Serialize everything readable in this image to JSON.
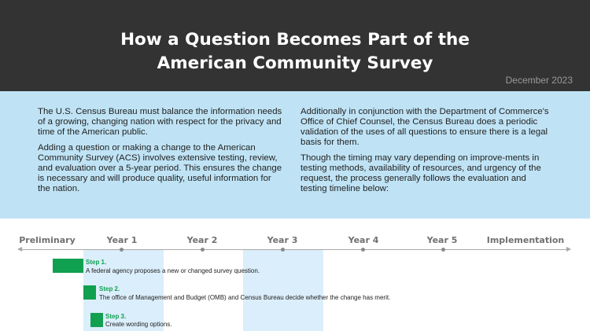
{
  "header": {
    "title_line1": "How a Question Becomes Part of the",
    "title_line2": "American Community Survey",
    "date": "December 2023"
  },
  "intro": {
    "left": [
      "The U.S. Census Bureau must balance the information needs of a growing, changing nation with respect for the privacy and time of the American public.",
      "Adding a question or making a change to the American Community Survey (ACS) involves extensive testing, review, and evaluation over a 5-year period. This ensures the change is necessary and will produce quality, useful information for the nation."
    ],
    "right": [
      "Additionally in conjunction with the Department of Commerce's Office of Chief Counsel, the Census Bureau does a periodic validation of the uses of all questions to ensure there is a legal basis for them.",
      "Though the timing may vary depending on improve-ments in testing methods, availability of resources, and urgency of the request, the process generally follows the evaluation and testing timeline below:"
    ]
  },
  "timeline": {
    "phases": [
      "Preliminary",
      "Year 1",
      "Year 2",
      "Year 3",
      "Year 4",
      "Year 5",
      "Implementation"
    ],
    "steps": [
      {
        "title": "Step 1.",
        "text": "A federal agency proposes a new or changed survey question."
      },
      {
        "title": "Step 2.",
        "text": "The office of Management and Budget (OMB) and Census Bureau decide whether the change has merit."
      },
      {
        "title": "Step 3.",
        "text": "Create wording options."
      }
    ],
    "colors": {
      "step": "#10a050",
      "band": "#dbeefb",
      "intro_bg": "#bfe3f5",
      "header_bg": "#333333"
    }
  }
}
